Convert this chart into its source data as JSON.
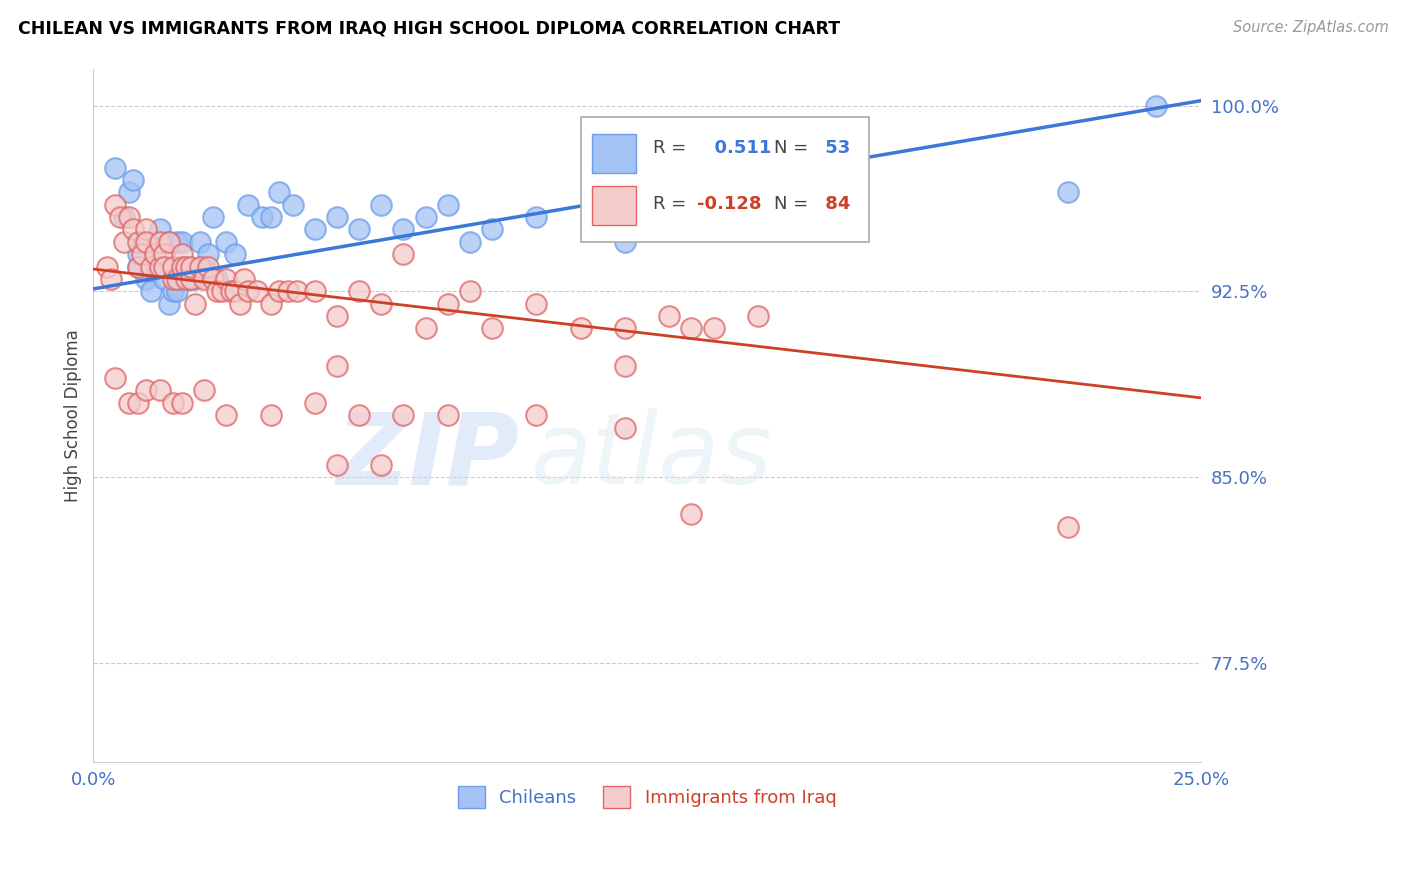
{
  "title": "CHILEAN VS IMMIGRANTS FROM IRAQ HIGH SCHOOL DIPLOMA CORRELATION CHART",
  "source": "Source: ZipAtlas.com",
  "ylabel": "High School Diploma",
  "xlim": [
    0.0,
    0.25
  ],
  "ylim": [
    0.735,
    1.015
  ],
  "xtick_vals": [
    0.0,
    0.05,
    0.1,
    0.15,
    0.2,
    0.25
  ],
  "xtick_labels": [
    "0.0%",
    "",
    "",
    "",
    "",
    "25.0%"
  ],
  "ytick_vals_right": [
    0.775,
    0.85,
    0.925,
    1.0
  ],
  "ytick_labels_right": [
    "77.5%",
    "85.0%",
    "92.5%",
    "100.0%"
  ],
  "watermark_zip": "ZIP",
  "watermark_atlas": "atlas",
  "legend_blue_r": "0.511",
  "legend_blue_n": "53",
  "legend_pink_r": "-0.128",
  "legend_pink_n": "84",
  "blue_fill": "#a4c2f4",
  "blue_edge": "#6d9eeb",
  "pink_fill": "#f4cccc",
  "pink_edge": "#e06666",
  "line_blue": "#3c78d8",
  "line_pink": "#cc4125",
  "bg_color": "#ffffff",
  "title_color": "#000000",
  "source_color": "#999999",
  "ylabel_color": "#444444",
  "right_tick_color": "#4472c4",
  "grid_color": "#cccccc",
  "chileans_x": [
    0.005,
    0.007,
    0.008,
    0.009,
    0.01,
    0.01,
    0.011,
    0.012,
    0.013,
    0.013,
    0.014,
    0.015,
    0.015,
    0.016,
    0.016,
    0.017,
    0.017,
    0.018,
    0.018,
    0.019,
    0.019,
    0.02,
    0.02,
    0.021,
    0.022,
    0.023,
    0.024,
    0.025,
    0.026,
    0.027,
    0.028,
    0.03,
    0.032,
    0.035,
    0.038,
    0.04,
    0.042,
    0.045,
    0.05,
    0.055,
    0.06,
    0.065,
    0.07,
    0.075,
    0.08,
    0.085,
    0.09,
    0.1,
    0.12,
    0.14,
    0.15,
    0.22,
    0.24
  ],
  "chileans_y": [
    0.975,
    0.955,
    0.965,
    0.97,
    0.935,
    0.94,
    0.945,
    0.93,
    0.925,
    0.935,
    0.94,
    0.945,
    0.95,
    0.93,
    0.935,
    0.945,
    0.92,
    0.925,
    0.935,
    0.945,
    0.925,
    0.93,
    0.945,
    0.935,
    0.93,
    0.93,
    0.945,
    0.935,
    0.94,
    0.955,
    0.93,
    0.945,
    0.94,
    0.96,
    0.955,
    0.955,
    0.965,
    0.96,
    0.95,
    0.955,
    0.95,
    0.96,
    0.95,
    0.955,
    0.96,
    0.945,
    0.95,
    0.955,
    0.945,
    0.955,
    0.96,
    0.965,
    1.0
  ],
  "iraq_x": [
    0.003,
    0.004,
    0.005,
    0.006,
    0.007,
    0.008,
    0.009,
    0.01,
    0.01,
    0.011,
    0.012,
    0.012,
    0.013,
    0.014,
    0.015,
    0.015,
    0.016,
    0.016,
    0.017,
    0.018,
    0.018,
    0.019,
    0.02,
    0.02,
    0.021,
    0.021,
    0.022,
    0.022,
    0.023,
    0.024,
    0.025,
    0.026,
    0.027,
    0.028,
    0.029,
    0.03,
    0.031,
    0.032,
    0.033,
    0.034,
    0.035,
    0.037,
    0.04,
    0.042,
    0.044,
    0.046,
    0.05,
    0.055,
    0.06,
    0.065,
    0.07,
    0.075,
    0.08,
    0.085,
    0.09,
    0.1,
    0.11,
    0.12,
    0.13,
    0.135,
    0.14,
    0.15,
    0.03,
    0.04,
    0.05,
    0.06,
    0.07,
    0.08,
    0.1,
    0.12,
    0.005,
    0.008,
    0.01,
    0.012,
    0.015,
    0.018,
    0.02,
    0.025,
    0.055,
    0.12,
    0.135,
    0.22,
    0.055,
    0.065
  ],
  "iraq_y": [
    0.935,
    0.93,
    0.96,
    0.955,
    0.945,
    0.955,
    0.95,
    0.945,
    0.935,
    0.94,
    0.95,
    0.945,
    0.935,
    0.94,
    0.945,
    0.935,
    0.94,
    0.935,
    0.945,
    0.93,
    0.935,
    0.93,
    0.94,
    0.935,
    0.93,
    0.935,
    0.93,
    0.935,
    0.92,
    0.935,
    0.93,
    0.935,
    0.93,
    0.925,
    0.925,
    0.93,
    0.925,
    0.925,
    0.92,
    0.93,
    0.925,
    0.925,
    0.92,
    0.925,
    0.925,
    0.925,
    0.925,
    0.915,
    0.925,
    0.92,
    0.94,
    0.91,
    0.92,
    0.925,
    0.91,
    0.92,
    0.91,
    0.91,
    0.915,
    0.91,
    0.91,
    0.915,
    0.875,
    0.875,
    0.88,
    0.875,
    0.875,
    0.875,
    0.875,
    0.87,
    0.89,
    0.88,
    0.88,
    0.885,
    0.885,
    0.88,
    0.88,
    0.885,
    0.895,
    0.895,
    0.835,
    0.83,
    0.855,
    0.855
  ]
}
